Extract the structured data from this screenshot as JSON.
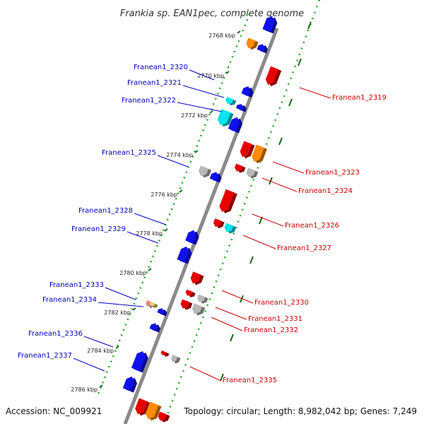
{
  "title": "Frankia sp. EAN1pec, complete genome",
  "accession": "Accession: NC_009921",
  "topology": "Topology: circular; Length: 8,982,042 bp; Genes: 7,249",
  "colors": {
    "backbone": "#808080",
    "dotted_track": "#22aa22",
    "forward_gene": "#e60000",
    "reverse_gene": "#1010ee",
    "forward_label": "#cc0000",
    "reverse_label": "#0000bb",
    "cyan_gene": "#00e5ee",
    "orange_gene": "#ff8c00",
    "grey_gene": "#b8b8b8"
  },
  "kbp_ticks": [
    "2768 kbp",
    "2770 kbp",
    "2772 kbp",
    "2774 kbp",
    "2776 kbp",
    "2778 kbp",
    "2780 kbp",
    "2782 kbp",
    "2784 kbp",
    "2786 kbp"
  ],
  "left_labels": [
    "Franean1_2320",
    "Franean1_2321",
    "Franean1_2322",
    "Franean1_2325",
    "Franean1_2328",
    "Franean1_2329",
    "Franean1_2333",
    "Franean1_2334",
    "Franean1_2336",
    "Franean1_2337"
  ],
  "right_labels": [
    "Franean1_2319",
    "Franean1_2323",
    "Franean1_2324",
    "Franean1_2326",
    "Franean1_2327",
    "Franean1_2330",
    "Franean1_2331",
    "Franean1_2332",
    "Franean1_2335"
  ]
}
